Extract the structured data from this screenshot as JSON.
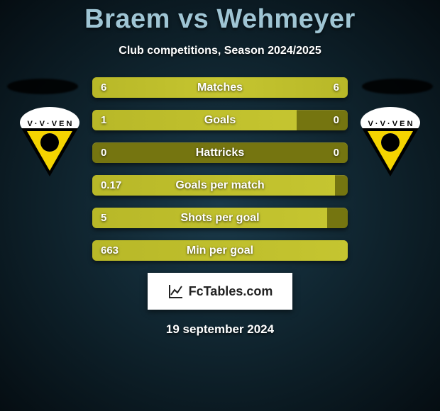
{
  "title": "Braem vs Wehmeyer",
  "subtitle": "Club competitions, Season 2024/2025",
  "date": "19 september 2024",
  "logo_text": "FcTables.com",
  "colors": {
    "title_color": "#9fc5d4",
    "bar_base": "#757510",
    "bar_fill": "#c0c02c",
    "background_center": "#1a3a4a",
    "background_edge": "#050d12"
  },
  "badge": {
    "top_text": "V·V·VEN",
    "primary": "#f5d400",
    "secondary": "#000000",
    "accent": "#ffffff"
  },
  "stats": [
    {
      "label": "Matches",
      "left_text": "6",
      "right_text": "6",
      "left_pct": 50,
      "right_pct": 50
    },
    {
      "label": "Goals",
      "left_text": "1",
      "right_text": "0",
      "left_pct": 80,
      "right_pct": 0
    },
    {
      "label": "Hattricks",
      "left_text": "0",
      "right_text": "0",
      "left_pct": 0,
      "right_pct": 0
    },
    {
      "label": "Goals per match",
      "left_text": "0.17",
      "right_text": "",
      "left_pct": 95,
      "right_pct": 0
    },
    {
      "label": "Shots per goal",
      "left_text": "5",
      "right_text": "",
      "left_pct": 92,
      "right_pct": 0
    },
    {
      "label": "Min per goal",
      "left_text": "663",
      "right_text": "",
      "left_pct": 100,
      "right_pct": 0
    }
  ]
}
